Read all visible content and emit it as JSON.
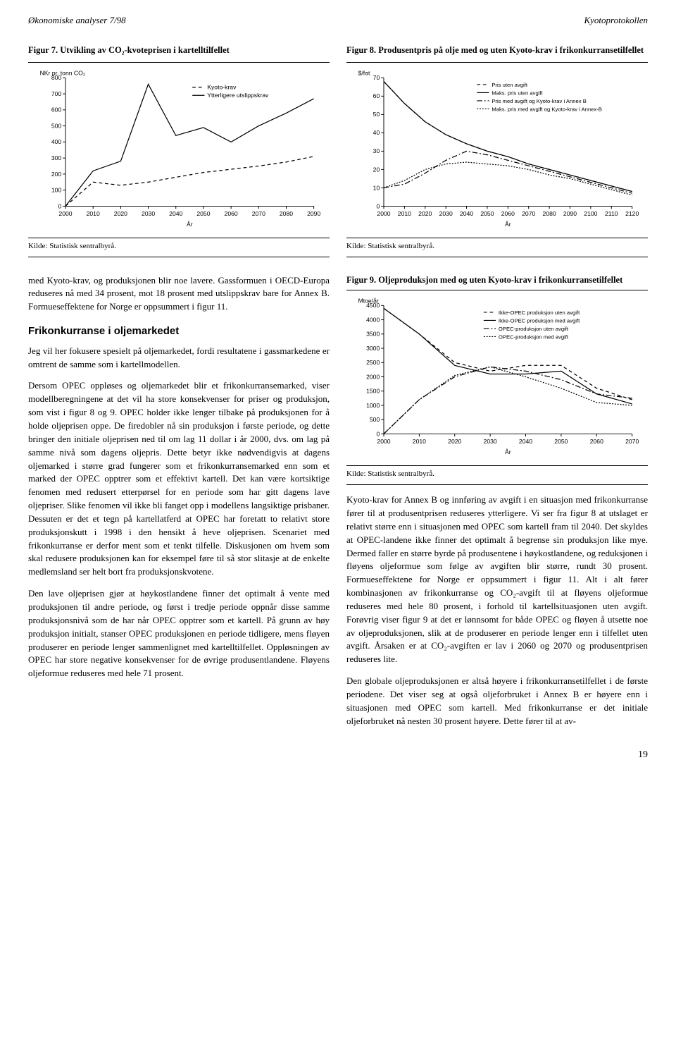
{
  "header": {
    "left": "Økonomiske analyser 7/98",
    "right": "Kyotoprotokollen"
  },
  "fig7": {
    "title": "Figur 7. Utvikling av CO₂-kvoteprisen i kartelltilfellet",
    "ylabel": "NKr pr. tonn CO₂",
    "legend": [
      "Kyoto-krav",
      "Ytterligere utslippskrav"
    ],
    "xlabel": "År",
    "xticks": [
      "2000",
      "2010",
      "2020",
      "2030",
      "2040",
      "2050",
      "2060",
      "2070",
      "2080",
      "2090"
    ],
    "ymin": 0,
    "ymax": 800,
    "ystep": 100,
    "series1": {
      "x": [
        2000,
        2010,
        2020,
        2030,
        2040,
        2050,
        2060,
        2070,
        2080,
        2090
      ],
      "y": [
        0,
        150,
        130,
        150,
        180,
        210,
        230,
        250,
        275,
        310
      ],
      "color": "#000000",
      "dash": "5,4"
    },
    "series2": {
      "x": [
        2000,
        2010,
        2020,
        2030,
        2040,
        2050,
        2060,
        2070,
        2080,
        2090
      ],
      "y": [
        0,
        220,
        280,
        760,
        440,
        490,
        400,
        500,
        580,
        670
      ],
      "color": "#000000",
      "dash": "none"
    },
    "source": "Kilde: Statistisk sentralbyrå.",
    "axis_fontsize": 9,
    "legend_fontsize": 9
  },
  "fig8": {
    "title": "Figur 8. Produsentpris på olje med og uten Kyoto-krav i frikonkurransetilfellet",
    "ylabel": "$/fat",
    "legend": [
      "Pris uten avgift",
      "Maks. pris uten avgift",
      "Pris med avgift og Kyoto-krav i Annex B",
      "Maks. pris med avgift og Kyoto-krav i Annex-B"
    ],
    "xlabel": "År",
    "xticks": [
      "2000",
      "2010",
      "2020",
      "2030",
      "2040",
      "2050",
      "2060",
      "2070",
      "2080",
      "2090",
      "2100",
      "2110",
      "2120"
    ],
    "ymin": 0,
    "ymax": 70,
    "ystep": 10,
    "series": [
      {
        "x": [
          2000,
          2010,
          2020,
          2030,
          2040,
          2050,
          2060,
          2070,
          2080,
          2090,
          2100,
          2110,
          2120
        ],
        "y": [
          68,
          56,
          46,
          39,
          34,
          30,
          27,
          23,
          20,
          17,
          14,
          11,
          8
        ],
        "color": "#000000",
        "dash": "5,4"
      },
      {
        "x": [
          2000,
          2010,
          2020,
          2030,
          2040,
          2050,
          2060,
          2070,
          2080,
          2090,
          2100,
          2110,
          2120
        ],
        "y": [
          68,
          56,
          46,
          39,
          34,
          30,
          27,
          23,
          20,
          17,
          14,
          11,
          8
        ],
        "color": "#000000",
        "dash": "none"
      },
      {
        "x": [
          2000,
          2010,
          2020,
          2030,
          2040,
          2050,
          2060,
          2070,
          2080,
          2090,
          2100,
          2110,
          2120
        ],
        "y": [
          10,
          12,
          18,
          25,
          30,
          28,
          25,
          22,
          19,
          16,
          13,
          10,
          7
        ],
        "color": "#000000",
        "dash": "8,3,2,3"
      },
      {
        "x": [
          2000,
          2010,
          2020,
          2030,
          2040,
          2050,
          2060,
          2070,
          2080,
          2090,
          2100,
          2110,
          2120
        ],
        "y": [
          10,
          14,
          20,
          23,
          24,
          23,
          22,
          20,
          17,
          15,
          12,
          9,
          6
        ],
        "color": "#000000",
        "dash": "2,2"
      }
    ],
    "source": "Kilde: Statistisk sentralbyrå.",
    "axis_fontsize": 9,
    "legend_fontsize": 8
  },
  "fig9": {
    "title": "Figur 9. Oljeproduksjon med og uten Kyoto-krav i frikonkurransetilfellet",
    "ylabel": "Mtoe/år",
    "legend": [
      "Ikke-OPEC produksjon uten avgift",
      "Ikke-OPEC produksjon med avgift",
      "OPEC-produksjon uten avgift",
      "OPEC-produksjon med avgift"
    ],
    "xlabel": "År",
    "xticks": [
      "2000",
      "2010",
      "2020",
      "2030",
      "2040",
      "2050",
      "2060",
      "2070"
    ],
    "ymin": 0,
    "ymax": 4500,
    "ystep": 500,
    "series": [
      {
        "x": [
          2000,
          2010,
          2020,
          2030,
          2040,
          2050,
          2060,
          2070
        ],
        "y": [
          4400,
          3500,
          2500,
          2200,
          2400,
          2400,
          1600,
          1200
        ],
        "color": "#000000",
        "dash": "5,4"
      },
      {
        "x": [
          2000,
          2010,
          2020,
          2030,
          2040,
          2050,
          2060,
          2070
        ],
        "y": [
          4400,
          3500,
          2400,
          2100,
          2100,
          2200,
          1400,
          1050
        ],
        "color": "#000000",
        "dash": "none"
      },
      {
        "x": [
          2000,
          2010,
          2020,
          2030,
          2040,
          2050,
          2060,
          2070
        ],
        "y": [
          0,
          1200,
          2000,
          2350,
          2200,
          1900,
          1400,
          1250
        ],
        "color": "#000000",
        "dash": "8,3,2,3"
      },
      {
        "x": [
          2000,
          2010,
          2020,
          2030,
          2040,
          2050,
          2060,
          2070
        ],
        "y": [
          0,
          1200,
          2050,
          2350,
          2000,
          1600,
          1100,
          1000
        ],
        "color": "#000000",
        "dash": "2,2"
      }
    ],
    "source": "Kilde: Statistisk sentralbyrå.",
    "axis_fontsize": 9,
    "legend_fontsize": 8
  },
  "bodytext": {
    "p1": "med Kyoto-krav, og produksjonen blir noe lavere. Gassformuen i OECD-Europa reduseres nå med 34 prosent, mot 18 prosent med utslippskrav bare for Annex B. Formueseffektene for Norge er oppsummert i figur 11.",
    "subheading": "Frikonkurranse i oljemarkedet",
    "p2": "Jeg vil her fokusere spesielt på oljemarkedet, fordi resultatene i gassmarkedene er omtrent de samme som i kartellmodellen.",
    "p3": "Dersom OPEC oppløses og oljemarkedet blir et frikonkurransemarked, viser modellberegningene at det vil ha store konsekvenser for priser og produksjon, som vist i figur 8 og 9. OPEC holder ikke lenger tilbake på produksjonen for å holde oljeprisen oppe. De firedobler nå sin produksjon i første periode, og dette bringer den initiale oljeprisen ned til om lag 11 dollar i år 2000, dvs. om lag på samme nivå som dagens oljepris. Dette betyr ikke nødvendigvis at dagens oljemarked i større grad fungerer som et frikonkurransemarked enn som et marked der OPEC opptrer som et effektivt kartell. Det kan være kortsiktige fenomen med redusert etterpørsel for en periode som har gitt dagens lave oljepriser. Slike fenomen vil ikke bli fanget opp i modellens langsiktige prisbaner. Dessuten er det et tegn på kartellatferd at OPEC har foretatt to relativt store produksjonskutt i 1998 i den hensikt å heve oljeprisen. Scenariet med frikonkurranse er derfor ment som et tenkt tilfelle. Diskusjonen om hvem som skal redusere produksjonen kan for eksempel føre til så stor slitasje at de enkelte medlemsland ser helt bort fra produksjonskvotene.",
    "p4": "Den lave oljeprisen gjør at høykostlandene finner det optimalt å vente med produksjonen til andre periode, og først i tredje periode oppnår disse samme produksjonsnivå som de har når OPEC opptrer som et kartell. På grunn av høy produksjon initialt, stanser OPEC produksjonen en periode tidligere, mens fløyen produserer en periode lenger sammenlignet med kartelltilfellet. Oppløsningen av OPEC har store negative konsekvenser for de øvrige produsentlandene. Fløyens oljeformue reduseres med hele 71 prosent.",
    "p5": "Kyoto-krav for Annex B og innføring av avgift i en situasjon med frikonkurranse fører til at produsentprisen reduseres ytterligere. Vi ser fra figur 8 at utslaget er relativt større enn i situasjonen med OPEC som kartell fram til 2040. Det skyldes at OPEC-landene ikke finner det optimalt å begrense sin produksjon like mye. Dermed faller en større byrde på produsentene i høykostlandene, og reduksjonen i fløyens oljeformue som følge av avgiften blir større, rundt 30 prosent. Formueseffektene for Norge er oppsummert i figur 11. Alt i alt fører kombinasjonen av frikonkurranse og CO₂-avgift til at fløyens oljeformue reduseres med hele 80 prosent, i forhold til kartellsituasjonen uten avgift. Forøvrig viser figur 9 at det er lønnsomt for både OPEC og fløyen å utsette noe av oljeproduksjonen, slik at de produserer en periode lenger enn i tilfellet uten avgift. Årsaken er at CO₂-avgiften er lav i 2060 og 2070 og produsentprisen reduseres lite.",
    "p6": "Den globale oljeproduksjonen er altså høyere i frikonkurransetilfellet i de første periodene. Det viser seg at også oljeforbruket i Annex B er høyere enn i situasjonen med OPEC som kartell. Med frikonkurranse er det initiale oljeforbruket nå nesten 30 prosent høyere. Dette fører til at av-"
  },
  "page_number": "19"
}
